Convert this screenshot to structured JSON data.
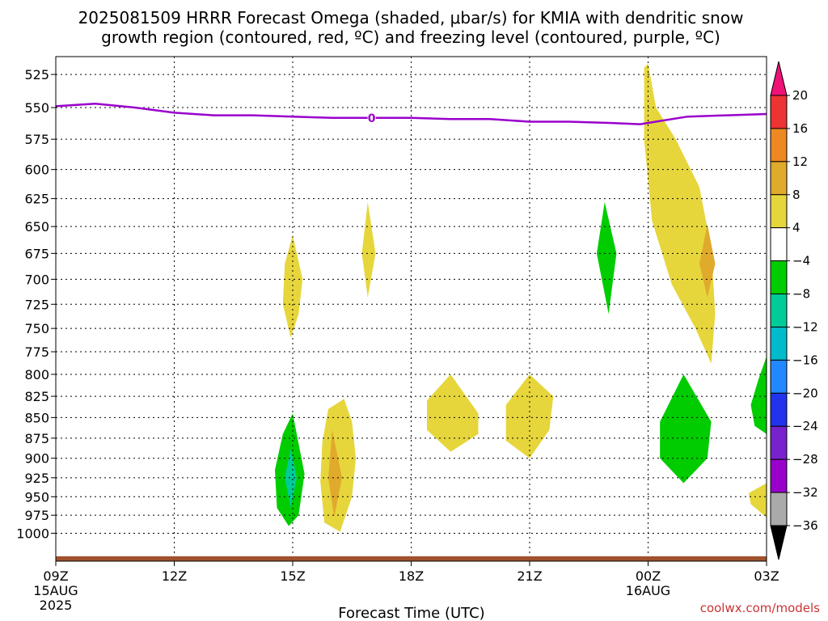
{
  "chart_data": {
    "type": "contour",
    "title_line1": "2025081509 HRRR Forecast Omega (shaded, μbar/s) for KMIA with dendritic snow",
    "title_line2": "growth region (contoured, red, ºC) and freezing level (contoured, purple, ºC)",
    "xlabel": "Forecast Time (UTC)",
    "credit": "coolwx.com/models",
    "y_axis": {
      "scale": "pressure (hPa), inverted",
      "ticks": [
        525,
        550,
        575,
        600,
        625,
        650,
        675,
        700,
        725,
        750,
        775,
        800,
        825,
        850,
        875,
        900,
        925,
        950,
        975,
        1000
      ]
    },
    "x_axis": {
      "range_hours": [
        0,
        18
      ],
      "ticks": [
        {
          "hour": 0,
          "label": "09Z",
          "label2": "15AUG",
          "label3": "2025"
        },
        {
          "hour": 3,
          "label": "12Z",
          "label2": "",
          "label3": ""
        },
        {
          "hour": 6,
          "label": "15Z",
          "label2": "",
          "label3": ""
        },
        {
          "hour": 9,
          "label": "18Z",
          "label2": "",
          "label3": ""
        },
        {
          "hour": 12,
          "label": "21Z",
          "label2": "",
          "label3": ""
        },
        {
          "hour": 15,
          "label": "00Z",
          "label2": "16AUG",
          "label3": ""
        },
        {
          "hour": 18,
          "label": "03Z",
          "label2": "",
          "label3": ""
        }
      ]
    },
    "grid": true,
    "freezing_level": {
      "label": "0",
      "color": "#9900cc",
      "points": [
        [
          0,
          549
        ],
        [
          1,
          547
        ],
        [
          2,
          550
        ],
        [
          3,
          554
        ],
        [
          4,
          556
        ],
        [
          5,
          556
        ],
        [
          6,
          557
        ],
        [
          7,
          558
        ],
        [
          8,
          558
        ],
        [
          9,
          558
        ],
        [
          10,
          559
        ],
        [
          11,
          559
        ],
        [
          12,
          561
        ],
        [
          13,
          561
        ],
        [
          14,
          562
        ],
        [
          14.8,
          563
        ],
        [
          15,
          562
        ],
        [
          16,
          557
        ],
        [
          17,
          556
        ],
        [
          18,
          555
        ]
      ]
    },
    "omega_regions": [
      {
        "level": "4-8",
        "color": "#e6d63c",
        "points": [
          [
            15.0,
            517
          ],
          [
            15.2,
            550
          ],
          [
            15.7,
            575
          ],
          [
            16.3,
            615
          ],
          [
            16.6,
            670
          ],
          [
            16.7,
            735
          ],
          [
            16.6,
            788
          ],
          [
            16.2,
            750
          ],
          [
            15.6,
            705
          ],
          [
            15.1,
            645
          ],
          [
            14.9,
            575
          ],
          [
            14.9,
            520
          ]
        ]
      },
      {
        "level": "8-12",
        "color": "#e0aa2c",
        "points": [
          [
            16.5,
            648
          ],
          [
            16.7,
            685
          ],
          [
            16.5,
            718
          ],
          [
            16.3,
            685
          ]
        ]
      },
      {
        "level": "4-8",
        "color": "#e6d63c",
        "points": [
          [
            6.0,
            658
          ],
          [
            6.25,
            700
          ],
          [
            6.15,
            735
          ],
          [
            5.95,
            760
          ],
          [
            5.75,
            725
          ],
          [
            5.8,
            685
          ]
        ]
      },
      {
        "level": "4-8",
        "color": "#e6d63c",
        "points": [
          [
            7.9,
            628
          ],
          [
            8.1,
            675
          ],
          [
            7.9,
            718
          ],
          [
            7.75,
            675
          ]
        ]
      },
      {
        "level": "-4--8",
        "color": "#00cc00",
        "points": [
          [
            13.9,
            628
          ],
          [
            14.2,
            675
          ],
          [
            14.0,
            735
          ],
          [
            13.7,
            675
          ]
        ]
      },
      {
        "level": "4-8",
        "color": "#e6d63c",
        "points": [
          [
            7.3,
            828
          ],
          [
            7.5,
            855
          ],
          [
            7.6,
            900
          ],
          [
            7.5,
            950
          ],
          [
            7.2,
            998
          ],
          [
            6.8,
            985
          ],
          [
            6.7,
            930
          ],
          [
            6.75,
            880
          ],
          [
            6.9,
            840
          ]
        ]
      },
      {
        "level": "8-12",
        "color": "#e0aa2c",
        "points": [
          [
            7.0,
            865
          ],
          [
            7.25,
            925
          ],
          [
            7.05,
            978
          ],
          [
            6.9,
            925
          ]
        ]
      },
      {
        "level": "-4--8",
        "color": "#00cc00",
        "points": [
          [
            6.0,
            845
          ],
          [
            6.3,
            920
          ],
          [
            6.15,
            975
          ],
          [
            5.9,
            990
          ],
          [
            5.6,
            965
          ],
          [
            5.55,
            915
          ],
          [
            5.75,
            870
          ]
        ]
      },
      {
        "level": "-8--12",
        "color": "#00cc99",
        "points": [
          [
            5.95,
            888
          ],
          [
            6.1,
            925
          ],
          [
            5.95,
            965
          ],
          [
            5.8,
            925
          ]
        ]
      },
      {
        "level": "4-8",
        "color": "#e6d63c",
        "points": [
          [
            10.0,
            800
          ],
          [
            10.7,
            845
          ],
          [
            10.7,
            870
          ],
          [
            10.0,
            892
          ],
          [
            9.4,
            865
          ],
          [
            9.4,
            830
          ]
        ]
      },
      {
        "level": "4-8",
        "color": "#e6d63c",
        "points": [
          [
            12.0,
            800
          ],
          [
            12.6,
            825
          ],
          [
            12.5,
            865
          ],
          [
            12.0,
            900
          ],
          [
            11.4,
            878
          ],
          [
            11.4,
            835
          ]
        ]
      },
      {
        "level": "-4--8",
        "color": "#00cc00",
        "points": [
          [
            15.9,
            800
          ],
          [
            16.6,
            855
          ],
          [
            16.5,
            900
          ],
          [
            15.9,
            932
          ],
          [
            15.3,
            900
          ],
          [
            15.3,
            855
          ]
        ]
      },
      {
        "level": "-4--8",
        "color": "#00cc00",
        "points": [
          [
            18.0,
            780
          ],
          [
            18.0,
            870
          ],
          [
            17.7,
            860
          ],
          [
            17.6,
            835
          ],
          [
            17.8,
            805
          ]
        ]
      },
      {
        "level": "4-8",
        "color": "#e6d63c",
        "points": [
          [
            18.0,
            932
          ],
          [
            18.0,
            978
          ],
          [
            17.6,
            960
          ],
          [
            17.55,
            945
          ]
        ]
      }
    ],
    "colorbar": {
      "labels": [
        "20",
        "16",
        "12",
        "8",
        "4",
        "−4",
        "−8",
        "−12",
        "−16",
        "−20",
        "−24",
        "−28",
        "−32",
        "−36"
      ],
      "colors": [
        "#ee1177",
        "#ee3333",
        "#ee8822",
        "#e0aa2c",
        "#e6d63c",
        "#ffffff",
        "#00cc00",
        "#00cc99",
        "#00bbcc",
        "#2288ff",
        "#2233ee",
        "#7722cc",
        "#9900cc",
        "#aaaaaa",
        "#000000"
      ]
    },
    "terrain_color": "#a0522d"
  }
}
